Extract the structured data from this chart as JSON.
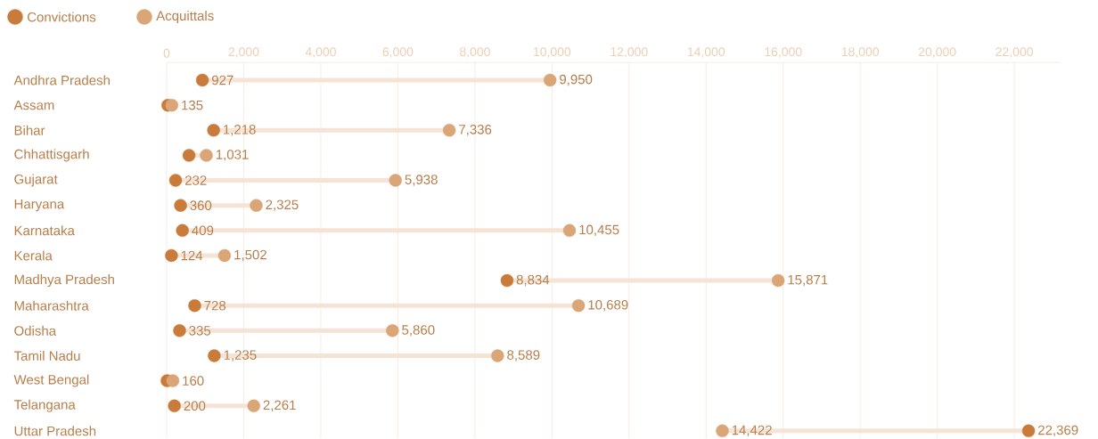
{
  "chart_data": {
    "type": "scatter",
    "orientation": "horizontal",
    "categories": [
      "Andhra Pradesh",
      "Assam",
      "Bihar",
      "Chhattisgarh",
      "Gujarat",
      "Haryana",
      "Karnataka",
      "Kerala",
      "Madhya Pradesh",
      "Maharashtra",
      "Odisha",
      "Tamil Nadu",
      "West Bengal",
      "Telangana",
      "Uttar Pradesh"
    ],
    "series": [
      {
        "name": "Convictions",
        "color": "#c97b3c",
        "values": [
          927,
          31,
          1218,
          580,
          232,
          360,
          409,
          124,
          8834,
          728,
          335,
          1235,
          11,
          200,
          22369
        ],
        "value_labels": [
          "927",
          null,
          "1,218",
          null,
          "232",
          "360",
          "409",
          "124",
          "8,834",
          "728",
          "335",
          "1,235",
          null,
          "200",
          "22,369"
        ]
      },
      {
        "name": "Acquittals",
        "color": "#dba677",
        "values": [
          9950,
          135,
          7336,
          1031,
          5938,
          2325,
          10455,
          1502,
          15871,
          10689,
          5860,
          8589,
          160,
          2261,
          14422
        ],
        "value_labels": [
          "9,950",
          "135",
          "7,336",
          "1,031",
          "5,938",
          "2,325",
          "10,455",
          "1,502",
          "15,871",
          "10,689",
          "5,860",
          "8,589",
          "160",
          "2,261",
          "14,422"
        ]
      }
    ],
    "xlim": [
      0,
      23200
    ],
    "xticks": [
      0,
      {
        "value": 2000,
        "label": "2,000"
      },
      {
        "value": 4000,
        "label": "4,000"
      },
      {
        "value": 6000,
        "label": "6,000"
      },
      {
        "value": 8000,
        "label": "8,000"
      },
      {
        "value": 10000,
        "label": "10,000"
      },
      {
        "value": 12000,
        "label": "12,000"
      },
      {
        "value": 14000,
        "label": "14,000"
      },
      {
        "value": 16000,
        "label": "16,000"
      },
      {
        "value": 18000,
        "label": "18,000"
      },
      {
        "value": 20000,
        "label": "20,000"
      },
      {
        "value": 22000,
        "label": "22,000"
      }
    ],
    "grid": "x",
    "legend": "top left",
    "marker": "circle"
  }
}
